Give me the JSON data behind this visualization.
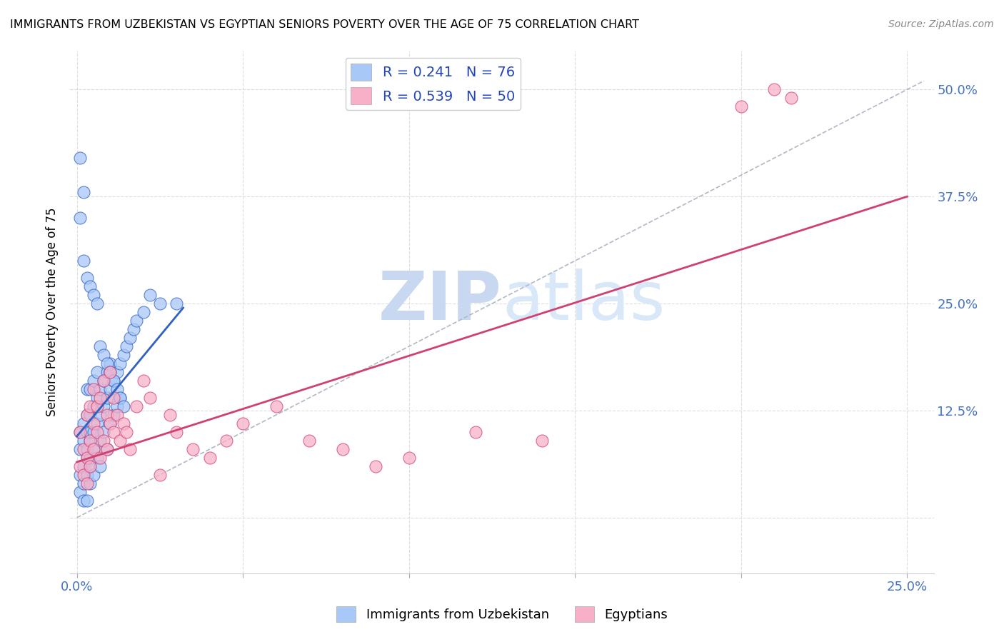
{
  "title": "IMMIGRANTS FROM UZBEKISTAN VS EGYPTIAN SENIORS POVERTY OVER THE AGE OF 75 CORRELATION CHART",
  "source": "Source: ZipAtlas.com",
  "ylabel": "Seniors Poverty Over the Age of 75",
  "x_ticks": [
    0.0,
    0.05,
    0.1,
    0.15,
    0.2,
    0.25
  ],
  "x_tick_labels": [
    "0.0%",
    "",
    "",
    "",
    "",
    "25.0%"
  ],
  "y_ticks": [
    0.0,
    0.125,
    0.25,
    0.375,
    0.5
  ],
  "y_tick_labels": [
    "",
    "12.5%",
    "25.0%",
    "37.5%",
    "50.0%"
  ],
  "xlim": [
    -0.002,
    0.258
  ],
  "ylim": [
    -0.065,
    0.545
  ],
  "color_blue": "#a8c8f8",
  "color_pink": "#f8b0c8",
  "color_blue_line": "#3060c0",
  "color_pink_line": "#d04070",
  "color_gray_dashed": "#b0b8c8",
  "watermark_color": "#c8d8f0",
  "blue_scatter_x": [
    0.001,
    0.001,
    0.001,
    0.001,
    0.002,
    0.002,
    0.002,
    0.002,
    0.002,
    0.003,
    0.003,
    0.003,
    0.003,
    0.003,
    0.003,
    0.003,
    0.004,
    0.004,
    0.004,
    0.004,
    0.004,
    0.004,
    0.004,
    0.005,
    0.005,
    0.005,
    0.005,
    0.005,
    0.006,
    0.006,
    0.006,
    0.006,
    0.007,
    0.007,
    0.007,
    0.007,
    0.008,
    0.008,
    0.008,
    0.009,
    0.009,
    0.009,
    0.01,
    0.01,
    0.01,
    0.011,
    0.011,
    0.012,
    0.012,
    0.013,
    0.013,
    0.014,
    0.015,
    0.016,
    0.017,
    0.018,
    0.02,
    0.022,
    0.025,
    0.001,
    0.002,
    0.003,
    0.004,
    0.005,
    0.006,
    0.007,
    0.008,
    0.009,
    0.01,
    0.011,
    0.012,
    0.013,
    0.014,
    0.03,
    0.001,
    0.002
  ],
  "blue_scatter_y": [
    0.08,
    0.05,
    0.1,
    0.03,
    0.04,
    0.06,
    0.09,
    0.11,
    0.02,
    0.05,
    0.07,
    0.1,
    0.12,
    0.15,
    0.08,
    0.02,
    0.06,
    0.09,
    0.12,
    0.15,
    0.1,
    0.04,
    0.07,
    0.1,
    0.13,
    0.16,
    0.08,
    0.05,
    0.11,
    0.14,
    0.17,
    0.07,
    0.12,
    0.15,
    0.09,
    0.06,
    0.13,
    0.16,
    0.1,
    0.14,
    0.17,
    0.08,
    0.15,
    0.18,
    0.11,
    0.16,
    0.12,
    0.17,
    0.13,
    0.18,
    0.14,
    0.19,
    0.2,
    0.21,
    0.22,
    0.23,
    0.24,
    0.26,
    0.25,
    0.35,
    0.3,
    0.28,
    0.27,
    0.26,
    0.25,
    0.2,
    0.19,
    0.18,
    0.17,
    0.16,
    0.15,
    0.14,
    0.13,
    0.25,
    0.42,
    0.38
  ],
  "pink_scatter_x": [
    0.001,
    0.001,
    0.002,
    0.002,
    0.003,
    0.003,
    0.003,
    0.004,
    0.004,
    0.004,
    0.005,
    0.005,
    0.005,
    0.006,
    0.006,
    0.007,
    0.007,
    0.008,
    0.008,
    0.009,
    0.009,
    0.01,
    0.01,
    0.011,
    0.011,
    0.012,
    0.013,
    0.014,
    0.015,
    0.016,
    0.018,
    0.02,
    0.022,
    0.025,
    0.028,
    0.03,
    0.035,
    0.04,
    0.045,
    0.05,
    0.06,
    0.07,
    0.08,
    0.09,
    0.1,
    0.12,
    0.14,
    0.2,
    0.21,
    0.215
  ],
  "pink_scatter_y": [
    0.1,
    0.06,
    0.08,
    0.05,
    0.12,
    0.07,
    0.04,
    0.09,
    0.13,
    0.06,
    0.11,
    0.08,
    0.15,
    0.13,
    0.1,
    0.14,
    0.07,
    0.16,
    0.09,
    0.12,
    0.08,
    0.17,
    0.11,
    0.14,
    0.1,
    0.12,
    0.09,
    0.11,
    0.1,
    0.08,
    0.13,
    0.16,
    0.14,
    0.05,
    0.12,
    0.1,
    0.08,
    0.07,
    0.09,
    0.11,
    0.13,
    0.09,
    0.08,
    0.06,
    0.07,
    0.1,
    0.09,
    0.48,
    0.5,
    0.49
  ],
  "blue_trend_x": [
    0.0,
    0.032
  ],
  "blue_trend_y": [
    0.095,
    0.245
  ],
  "pink_trend_x": [
    0.0,
    0.25
  ],
  "pink_trend_y": [
    0.065,
    0.375
  ],
  "ref_line_x": [
    0.0,
    0.255
  ],
  "ref_line_y": [
    0.0,
    0.51
  ]
}
